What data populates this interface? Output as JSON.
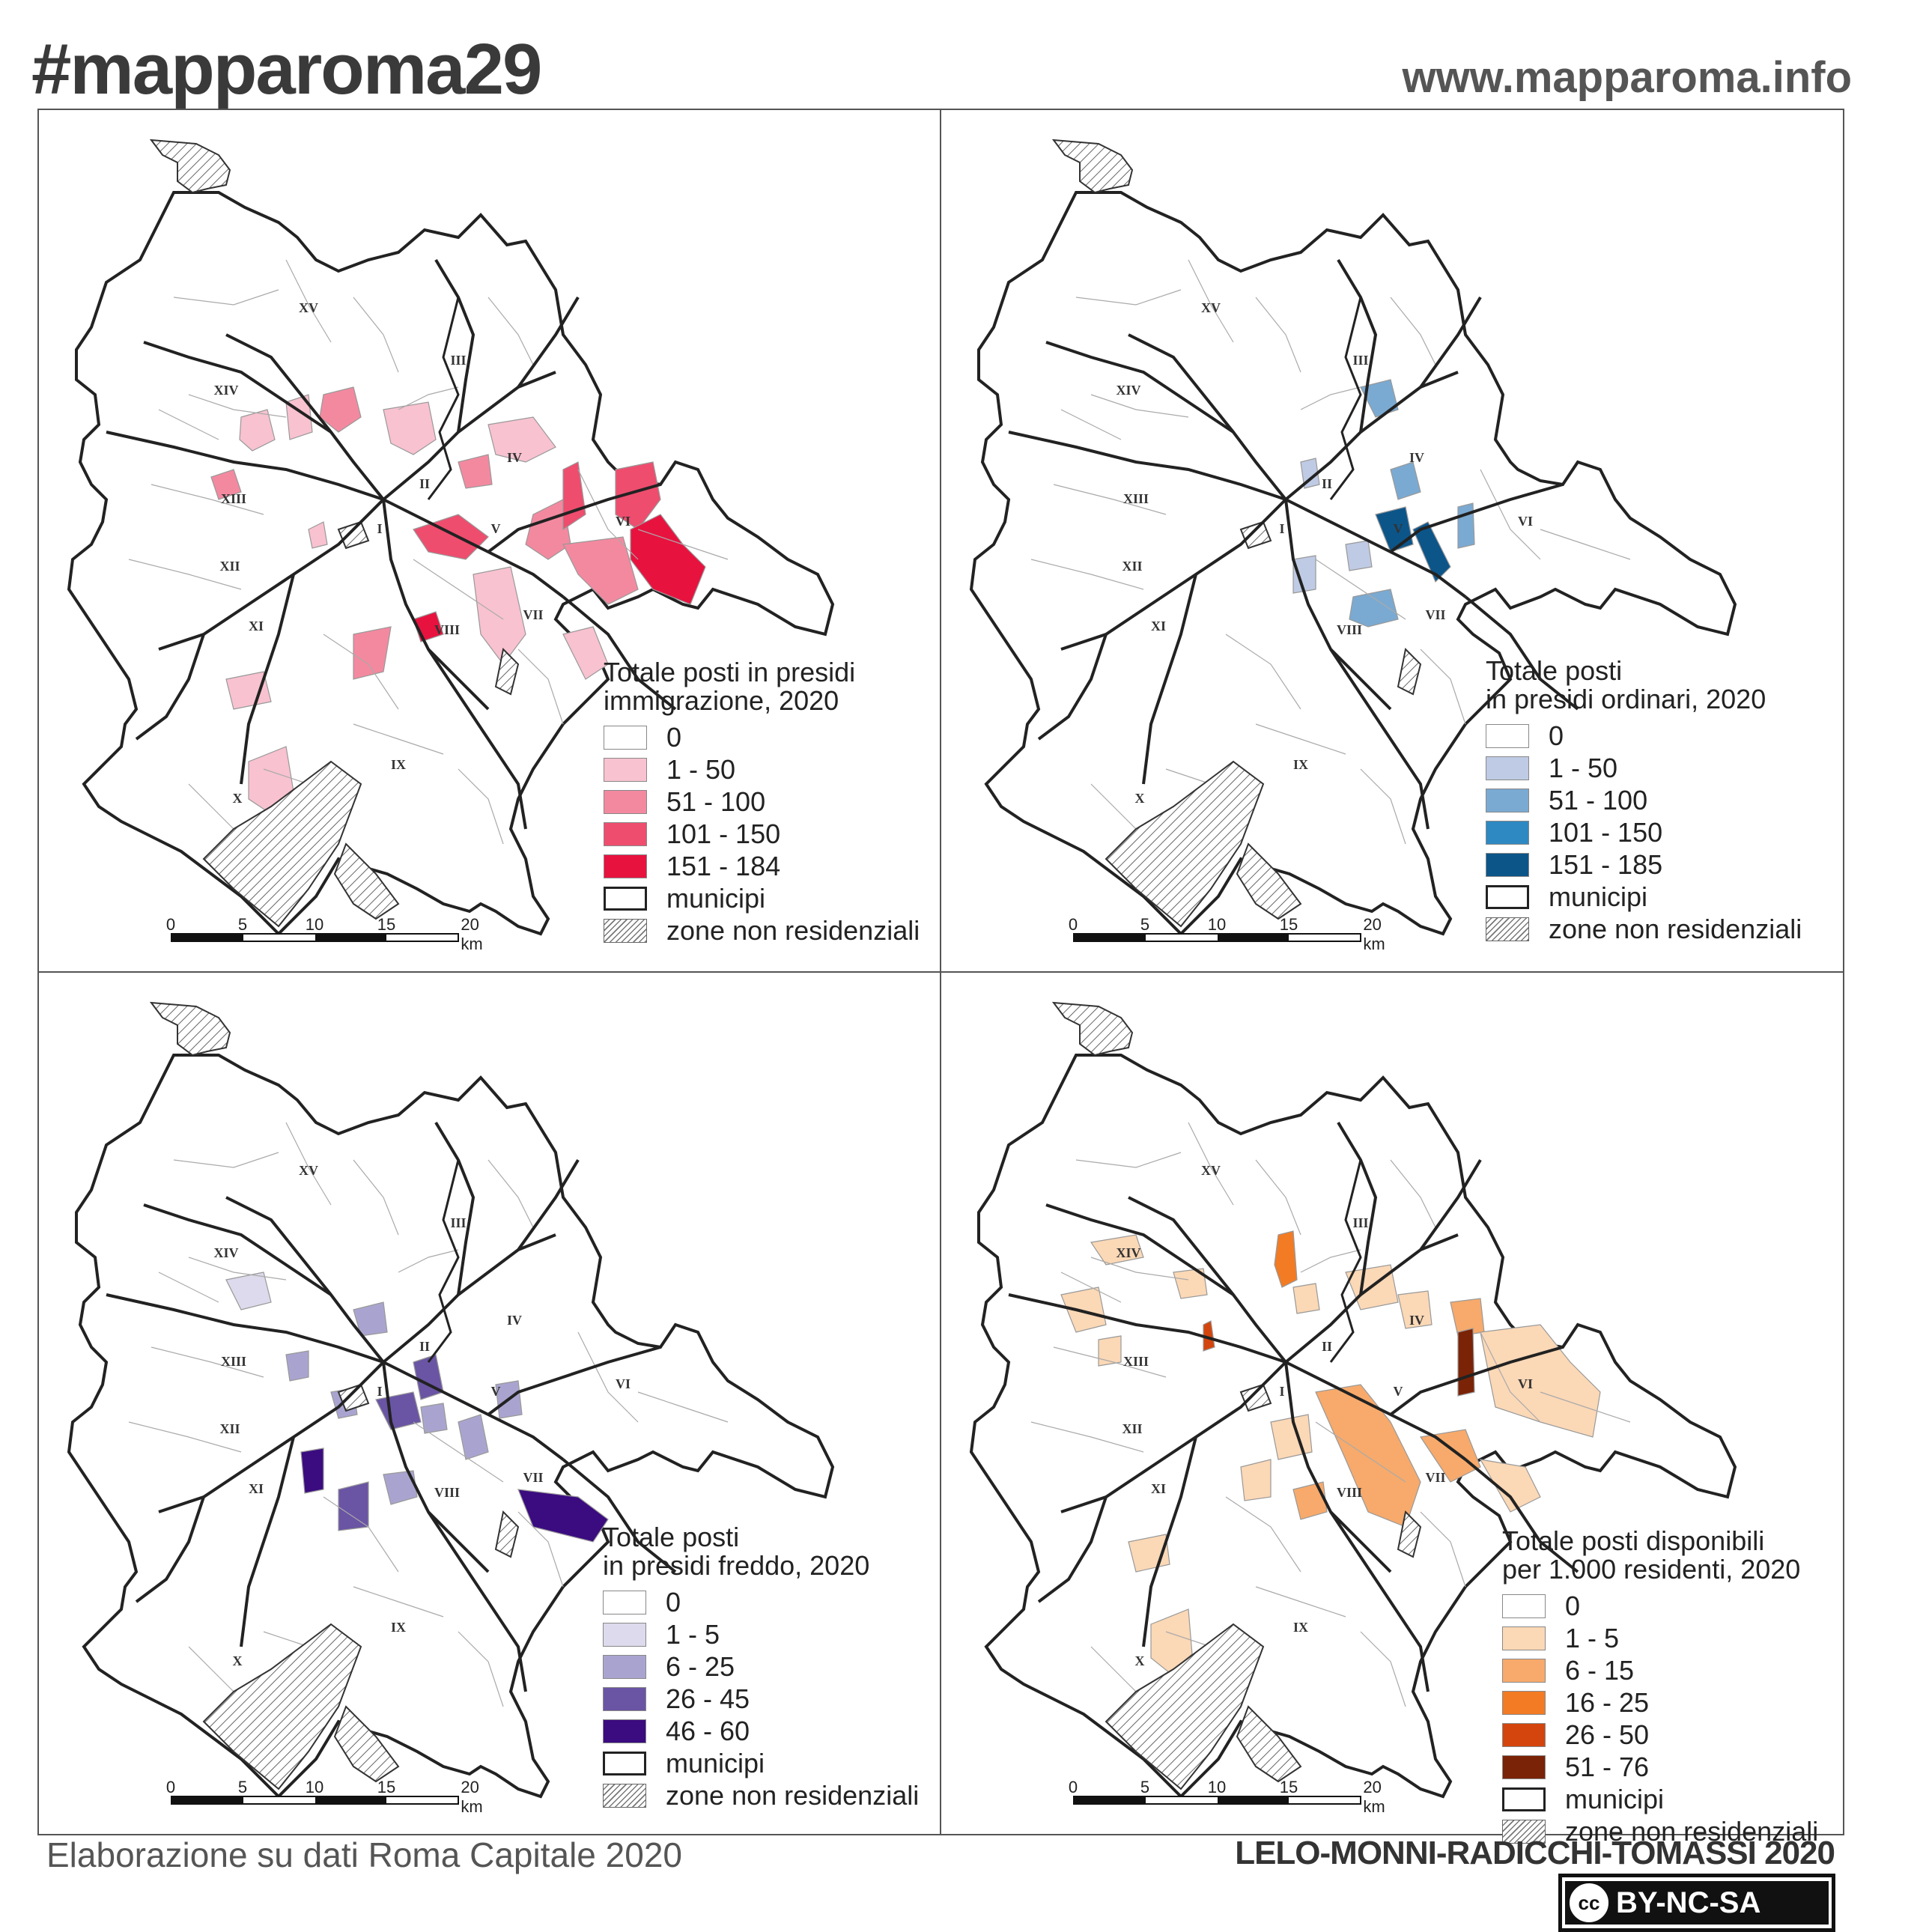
{
  "header": {
    "hashtag": "#mapparoma29",
    "website": "www.mapparoma.info"
  },
  "footer": {
    "source": "Elaborazione su dati Roma Capitale 2020",
    "authors": "LELO-MONNI-RADICCHI-TOMASSI 2020",
    "license_cc": "cc",
    "license_text": "BY-NC-SA"
  },
  "colors": {
    "municipi_border": "#222222",
    "zone_hatch": "#777777"
  },
  "municipi_labels": [
    "I",
    "II",
    "III",
    "IV",
    "V",
    "VI",
    "VII",
    "VIII",
    "IX",
    "X",
    "XI",
    "XII",
    "XIII",
    "XIV",
    "XV"
  ],
  "scale": {
    "ticks": [
      "0",
      "5",
      "10",
      "15",
      "20 km"
    ]
  },
  "panels": [
    {
      "id": "immigrazione",
      "legend_title": "Totale posti in presidi\nimmigrazione, 2020",
      "classes": [
        {
          "label": "0",
          "color": "#ffffff"
        },
        {
          "label": "1 - 50",
          "color": "#f8c2d0"
        },
        {
          "label": "51 - 100",
          "color": "#f3899f"
        },
        {
          "label": "101 - 150",
          "color": "#ee4d6e"
        },
        {
          "label": "151 - 184",
          "color": "#e8123f"
        }
      ],
      "municipi_label": "municipi",
      "zone_label": "zone non residenziali"
    },
    {
      "id": "ordinari",
      "legend_title": "Totale posti\nin presidi ordinari, 2020",
      "classes": [
        {
          "label": "0",
          "color": "#ffffff"
        },
        {
          "label": "1 - 50",
          "color": "#bfcbe4"
        },
        {
          "label": "51 - 100",
          "color": "#7aaad2"
        },
        {
          "label": "101 - 150",
          "color": "#2e89c2"
        },
        {
          "label": "151 - 185",
          "color": "#0c5589"
        }
      ],
      "municipi_label": "municipi",
      "zone_label": "zone non residenziali"
    },
    {
      "id": "freddo",
      "legend_title": "Totale posti\nin presidi freddo, 2020",
      "classes": [
        {
          "label": "0",
          "color": "#ffffff"
        },
        {
          "label": "1 - 5",
          "color": "#dcdaec"
        },
        {
          "label": "6 - 25",
          "color": "#a9a4cf"
        },
        {
          "label": "26 - 45",
          "color": "#6a54a4"
        },
        {
          "label": "46 - 60",
          "color": "#3b0b80"
        }
      ],
      "municipi_label": "municipi",
      "zone_label": "zone non residenziali"
    },
    {
      "id": "residenti",
      "legend_title": "Totale posti disponibili\nper 1.000 residenti, 2020",
      "classes": [
        {
          "label": "0",
          "color": "#ffffff"
        },
        {
          "label": "1 - 5",
          "color": "#fbd8b6"
        },
        {
          "label": "6 - 15",
          "color": "#f7aa6b"
        },
        {
          "label": "16 - 25",
          "color": "#f27b24"
        },
        {
          "label": "26 - 50",
          "color": "#d3450d"
        },
        {
          "label": "51 - 76",
          "color": "#7b2306"
        }
      ],
      "municipi_label": "municipi",
      "zone_label": "zone non residenziali"
    }
  ]
}
